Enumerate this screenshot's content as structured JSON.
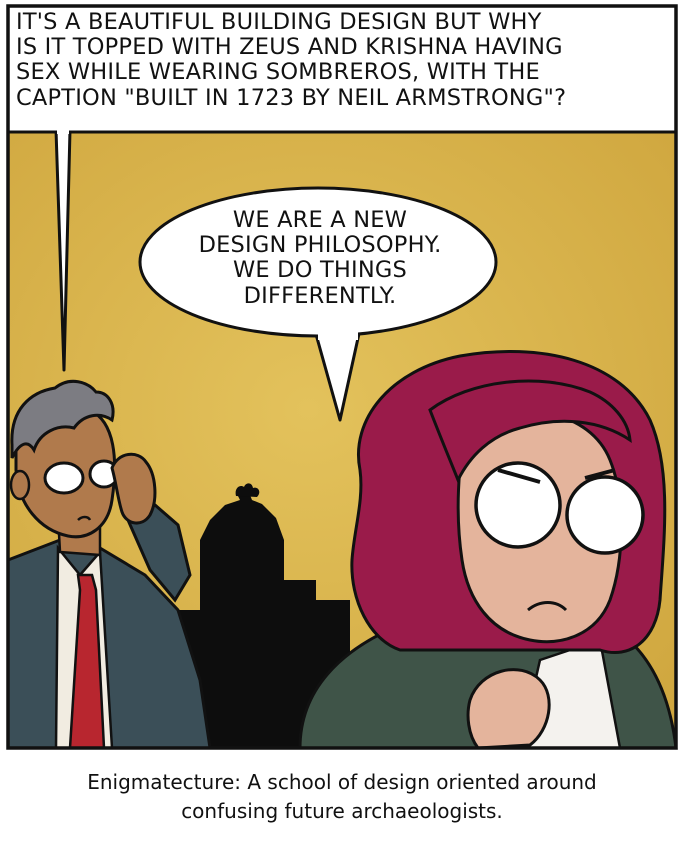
{
  "colors": {
    "sky": "#d9b24a",
    "sky_light": "#e6c867",
    "frame": "#1a1a1a",
    "bubble": "#ffffff",
    "skin_man": "#b07a4c",
    "skin_woman": "#e4b49c",
    "hair_man": "#7c7c82",
    "hair_woman": "#9a1b4a",
    "suit": "#3b4f58",
    "tie": "#b8262f",
    "jacket_woman": "#3f5448",
    "silhouette": "#0d0d0d"
  },
  "top_caption": {
    "lines": [
      "It's a beautiful building design but why",
      "is it topped with Zeus and Krishna having",
      "sex while wearing sombreros, with the",
      "caption \"Built in 1723 by Neil Armstrong\"?"
    ]
  },
  "speech_bubble": {
    "lines": [
      "We are a new",
      "design philosophy.",
      "We do things",
      "differently."
    ]
  },
  "footer_caption": {
    "line1": "Enigmatecture: A school of design oriented around",
    "line2": "confusing future archaeologists."
  }
}
